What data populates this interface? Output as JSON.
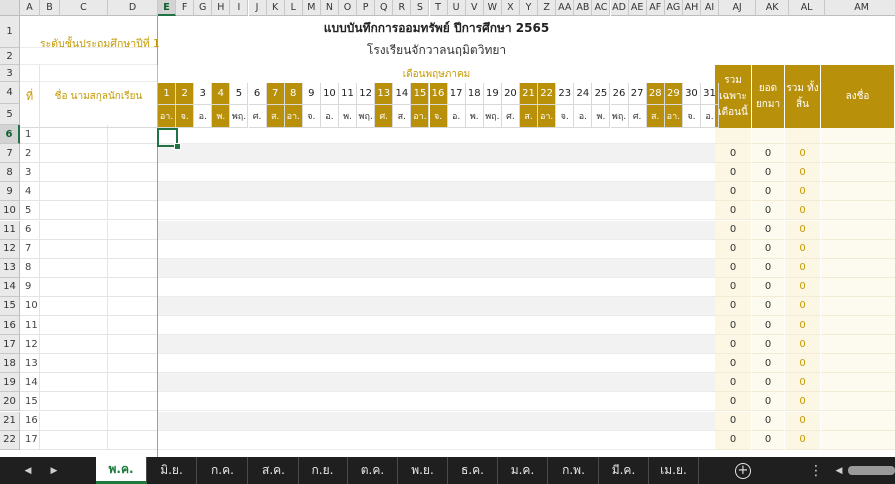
{
  "sheet": {
    "columns": [
      "A",
      "B",
      "C",
      "D",
      "E",
      "F",
      "G",
      "H",
      "I",
      "J",
      "K",
      "L",
      "M",
      "N",
      "O",
      "P",
      "Q",
      "R",
      "S",
      "T",
      "U",
      "V",
      "W",
      "X",
      "Y",
      "Z",
      "AA",
      "AB",
      "AC",
      "AD",
      "AE",
      "AF",
      "AG",
      "AH",
      "AI",
      "AJ",
      "AK",
      "AL",
      "AM"
    ],
    "selected_column": "E",
    "rows": [
      "1",
      "2",
      "3",
      "4",
      "5",
      "6",
      "7",
      "8",
      "9",
      "10",
      "11",
      "12",
      "13",
      "14",
      "15",
      "16",
      "17",
      "18",
      "19",
      "20",
      "21",
      "22"
    ],
    "selected_row": "6"
  },
  "header": {
    "title": "แบบบันทึกการออมทรัพย์ ปีการศึกษา 2565",
    "school": "โรงเรียนจักวาลนฤมิตวิทยา",
    "grade_label": "ระดับชั้นประถมศึกษาปีที่ 1",
    "month_label": "เดือนพฤษภาคม",
    "no_label": "ที่",
    "name_label": "ชื่อ นามสกุลนักเรียน",
    "sum_month_label": "รวม เฉพาะ เดือนนี้",
    "carry_label": "ยอด ยกมา",
    "total_label": "รวม ทั้งสิ้น",
    "sign_label": "ลงชื่อ"
  },
  "days": [
    {
      "d": "1",
      "w": "อา.",
      "hol": true,
      "mark": true
    },
    {
      "d": "2",
      "w": "จ.",
      "hol": true,
      "mark": true
    },
    {
      "d": "3",
      "w": "อ.",
      "hol": false,
      "mark": false
    },
    {
      "d": "4",
      "w": "พ.",
      "hol": true,
      "mark": true
    },
    {
      "d": "5",
      "w": "พฤ.",
      "hol": false,
      "mark": false
    },
    {
      "d": "6",
      "w": "ศ.",
      "hol": false,
      "mark": false
    },
    {
      "d": "7",
      "w": "ส.",
      "hol": true,
      "mark": false
    },
    {
      "d": "8",
      "w": "อา.",
      "hol": true,
      "mark": false
    },
    {
      "d": "9",
      "w": "จ.",
      "hol": false,
      "mark": false
    },
    {
      "d": "10",
      "w": "อ.",
      "hol": false,
      "mark": false
    },
    {
      "d": "11",
      "w": "พ.",
      "hol": false,
      "mark": false
    },
    {
      "d": "12",
      "w": "พฤ.",
      "hol": false,
      "mark": false
    },
    {
      "d": "13",
      "w": "ศ.",
      "hol": true,
      "mark": true
    },
    {
      "d": "14",
      "w": "ส.",
      "hol": false,
      "mark": false
    },
    {
      "d": "15",
      "w": "อา.",
      "hol": true,
      "mark": true
    },
    {
      "d": "16",
      "w": "จ.",
      "hol": true,
      "mark": true
    },
    {
      "d": "17",
      "w": "อ.",
      "hol": false,
      "mark": false
    },
    {
      "d": "18",
      "w": "พ.",
      "hol": false,
      "mark": false
    },
    {
      "d": "19",
      "w": "พฤ.",
      "hol": false,
      "mark": false
    },
    {
      "d": "20",
      "w": "ศ.",
      "hol": false,
      "mark": false
    },
    {
      "d": "21",
      "w": "ส.",
      "hol": true,
      "mark": false
    },
    {
      "d": "22",
      "w": "อา.",
      "hol": true,
      "mark": false
    },
    {
      "d": "23",
      "w": "จ.",
      "hol": false,
      "mark": false
    },
    {
      "d": "24",
      "w": "อ.",
      "hol": false,
      "mark": false
    },
    {
      "d": "25",
      "w": "พ.",
      "hol": false,
      "mark": false
    },
    {
      "d": "26",
      "w": "พฤ.",
      "hol": false,
      "mark": false
    },
    {
      "d": "27",
      "w": "ศ.",
      "hol": false,
      "mark": false
    },
    {
      "d": "28",
      "w": "ส.",
      "hol": true,
      "mark": false
    },
    {
      "d": "29",
      "w": "อา.",
      "hol": true,
      "mark": false
    },
    {
      "d": "30",
      "w": "จ.",
      "hol": false,
      "mark": false
    },
    {
      "d": "31",
      "w": "อ.",
      "hol": false,
      "mark": false
    }
  ],
  "students": [
    {
      "no": "1",
      "sum_month": "",
      "carry": "",
      "total": ""
    },
    {
      "no": "2",
      "sum_month": "0",
      "carry": "0",
      "total": "0"
    },
    {
      "no": "3",
      "sum_month": "0",
      "carry": "0",
      "total": "0"
    },
    {
      "no": "4",
      "sum_month": "0",
      "carry": "0",
      "total": "0"
    },
    {
      "no": "5",
      "sum_month": "0",
      "carry": "0",
      "total": "0"
    },
    {
      "no": "6",
      "sum_month": "0",
      "carry": "0",
      "total": "0"
    },
    {
      "no": "7",
      "sum_month": "0",
      "carry": "0",
      "total": "0"
    },
    {
      "no": "8",
      "sum_month": "0",
      "carry": "0",
      "total": "0"
    },
    {
      "no": "9",
      "sum_month": "0",
      "carry": "0",
      "total": "0"
    },
    {
      "no": "10",
      "sum_month": "0",
      "carry": "0",
      "total": "0"
    },
    {
      "no": "11",
      "sum_month": "0",
      "carry": "0",
      "total": "0"
    },
    {
      "no": "12",
      "sum_month": "0",
      "carry": "0",
      "total": "0"
    },
    {
      "no": "13",
      "sum_month": "0",
      "carry": "0",
      "total": "0"
    },
    {
      "no": "14",
      "sum_month": "0",
      "carry": "0",
      "total": "0"
    },
    {
      "no": "15",
      "sum_month": "0",
      "carry": "0",
      "total": "0"
    },
    {
      "no": "16",
      "sum_month": "0",
      "carry": "0",
      "total": "0"
    },
    {
      "no": "17",
      "sum_month": "0",
      "carry": "0",
      "total": "0"
    }
  ],
  "sheet_tabs": {
    "active": "พ.ค.",
    "tabs": [
      "พ.ค.",
      "มิ.ย.",
      "ก.ค.",
      "ส.ค.",
      "ก.ย.",
      "ต.ค.",
      "พ.ย.",
      "ธ.ค.",
      "ม.ค.",
      "ก.พ.",
      "มี.ค.",
      "เม.ย."
    ],
    "prev_icon": "◀",
    "next_icon": "▶",
    "add_icon": "+",
    "more_icon": "⋮",
    "scroll_left_icon": "◀"
  },
  "colors": {
    "gold": "#b8900a",
    "gold_text": "#c49a00",
    "excel_green": "#217346"
  }
}
